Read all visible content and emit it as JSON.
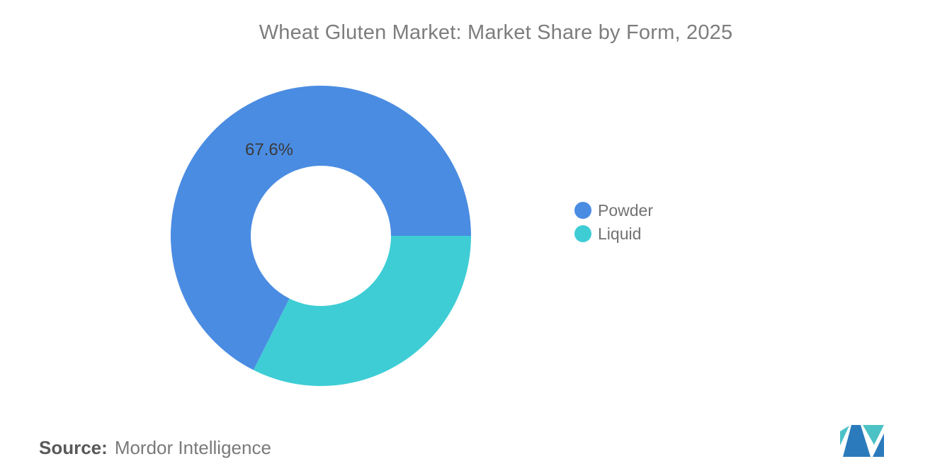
{
  "title": "Wheat Gluten Market: Market Share by Form, 2025",
  "chart_data": {
    "type": "pie",
    "donut": true,
    "title": "Wheat Gluten Market: Market Share by Form, 2025",
    "inner_radius_pct": 47,
    "legend_position": "right",
    "series": [
      {
        "name": "Powder",
        "value": 67.6,
        "data_label": "67.6%",
        "color": "#4A8CE2"
      },
      {
        "name": "Liquid",
        "value": 32.4,
        "data_label": "",
        "color": "#3ECDD5"
      }
    ],
    "layout_note_liquid_start_deg_cw_from_top": 90
  },
  "source": {
    "label": "Source:",
    "text": "Mordor Intelligence"
  },
  "logo": {
    "name": "mordor-intelligence-logo",
    "blue": "#2B7BBC",
    "teal": "#4CC2C6"
  }
}
